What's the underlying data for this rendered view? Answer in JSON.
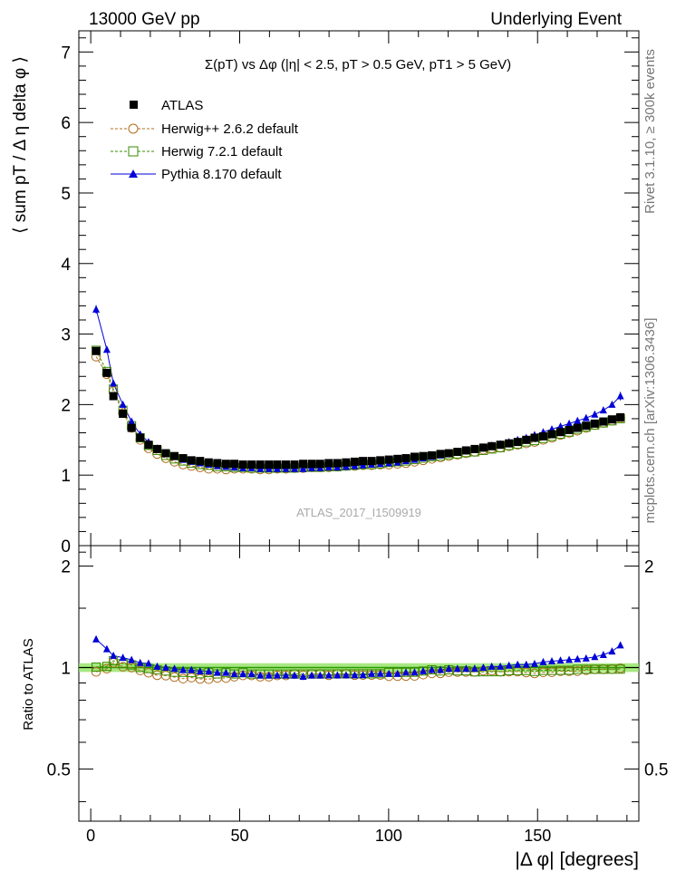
{
  "header": {
    "left": "13000 GeV pp",
    "right": "Underlying Event"
  },
  "side_labels": {
    "rivet": "Rivet 3.1.10, ≥ 300k events",
    "mcplots": "mcplots.cern.ch [arXiv:1306.3436]"
  },
  "chart_data": {
    "type": "scatter",
    "title": "Σ(pT) vs Δφ (|η| < 2.5, pT > 0.5 GeV, pT1 > 5 GeV)",
    "watermark": "ATLAS_2017_I1509919",
    "xlabel": "|Δ φ| [degrees]",
    "ylabel": "⟨ sum pT / Δ η delta φ ⟩",
    "ratio_ylabel": "Ratio to ATLAS",
    "xlim": [
      -4,
      184
    ],
    "ylim": [
      0,
      7.3
    ],
    "ratio_ylim": [
      0.35,
      2.3
    ],
    "x_ticks": [
      0,
      50,
      100,
      150
    ],
    "y_ticks": [
      1,
      2,
      3,
      4,
      5,
      6,
      7
    ],
    "y_tick_zero": "0",
    "ratio_ticks": [
      0.5,
      1,
      2
    ],
    "legend": [
      "ATLAS",
      "Herwig++ 2.6.2 default",
      "Herwig 7.2.1 default",
      "Pythia 8.170 default"
    ],
    "x": [
      1.8,
      5.4,
      7.6,
      10.8,
      13.7,
      16.6,
      19.4,
      22.3,
      25.2,
      28.1,
      31.0,
      33.8,
      36.7,
      39.6,
      42.5,
      45.4,
      48.2,
      51.1,
      54.0,
      56.9,
      59.8,
      62.6,
      65.5,
      68.4,
      71.3,
      74.2,
      77.0,
      79.9,
      82.8,
      85.7,
      88.6,
      91.4,
      94.3,
      97.2,
      100.1,
      103.0,
      105.8,
      108.7,
      111.6,
      114.5,
      117.4,
      120.2,
      123.1,
      126.0,
      128.9,
      131.8,
      134.6,
      137.5,
      140.4,
      143.3,
      146.2,
      149.0,
      151.9,
      154.8,
      157.7,
      160.6,
      163.4,
      166.3,
      169.2,
      172.1,
      175.0,
      177.8
    ],
    "series": [
      {
        "name": "ATLAS",
        "values": [
          2.76,
          2.45,
          2.12,
          1.87,
          1.67,
          1.53,
          1.43,
          1.37,
          1.31,
          1.27,
          1.24,
          1.21,
          1.2,
          1.18,
          1.17,
          1.16,
          1.16,
          1.15,
          1.15,
          1.15,
          1.15,
          1.15,
          1.15,
          1.15,
          1.16,
          1.16,
          1.16,
          1.17,
          1.17,
          1.18,
          1.19,
          1.2,
          1.2,
          1.21,
          1.22,
          1.23,
          1.24,
          1.26,
          1.27,
          1.28,
          1.3,
          1.31,
          1.33,
          1.35,
          1.37,
          1.39,
          1.41,
          1.43,
          1.45,
          1.47,
          1.5,
          1.53,
          1.55,
          1.58,
          1.61,
          1.64,
          1.67,
          1.7,
          1.73,
          1.76,
          1.79,
          1.82
        ]
      },
      {
        "name": "Herwig++ 2.6.2 default",
        "values": [
          2.68,
          2.43,
          2.19,
          1.88,
          1.67,
          1.5,
          1.38,
          1.3,
          1.24,
          1.19,
          1.15,
          1.13,
          1.11,
          1.09,
          1.09,
          1.08,
          1.09,
          1.09,
          1.09,
          1.08,
          1.08,
          1.09,
          1.09,
          1.1,
          1.1,
          1.11,
          1.11,
          1.11,
          1.12,
          1.13,
          1.13,
          1.14,
          1.14,
          1.15,
          1.15,
          1.16,
          1.17,
          1.19,
          1.21,
          1.23,
          1.25,
          1.27,
          1.29,
          1.31,
          1.33,
          1.36,
          1.38,
          1.39,
          1.41,
          1.43,
          1.45,
          1.47,
          1.5,
          1.53,
          1.57,
          1.6,
          1.63,
          1.67,
          1.71,
          1.74,
          1.77,
          1.81
        ]
      },
      {
        "name": "Herwig 7.2.1 default",
        "values": [
          2.77,
          2.47,
          2.22,
          1.92,
          1.7,
          1.53,
          1.42,
          1.35,
          1.28,
          1.23,
          1.2,
          1.17,
          1.15,
          1.14,
          1.12,
          1.12,
          1.11,
          1.11,
          1.1,
          1.1,
          1.1,
          1.1,
          1.1,
          1.1,
          1.11,
          1.11,
          1.11,
          1.12,
          1.12,
          1.13,
          1.14,
          1.15,
          1.15,
          1.16,
          1.18,
          1.19,
          1.2,
          1.22,
          1.24,
          1.26,
          1.27,
          1.29,
          1.3,
          1.32,
          1.33,
          1.35,
          1.37,
          1.39,
          1.42,
          1.44,
          1.47,
          1.49,
          1.52,
          1.55,
          1.58,
          1.61,
          1.65,
          1.68,
          1.71,
          1.74,
          1.77,
          1.8
        ]
      },
      {
        "name": "Pythia 8.170 default",
        "values": [
          3.35,
          2.78,
          2.3,
          2.0,
          1.76,
          1.58,
          1.47,
          1.38,
          1.31,
          1.26,
          1.22,
          1.19,
          1.17,
          1.15,
          1.13,
          1.12,
          1.11,
          1.1,
          1.1,
          1.09,
          1.09,
          1.09,
          1.09,
          1.09,
          1.09,
          1.1,
          1.1,
          1.11,
          1.11,
          1.12,
          1.13,
          1.14,
          1.15,
          1.16,
          1.17,
          1.18,
          1.2,
          1.22,
          1.24,
          1.26,
          1.28,
          1.3,
          1.32,
          1.34,
          1.36,
          1.39,
          1.42,
          1.44,
          1.47,
          1.5,
          1.53,
          1.57,
          1.61,
          1.65,
          1.69,
          1.73,
          1.77,
          1.81,
          1.86,
          1.92,
          2.0,
          2.12
        ]
      }
    ],
    "ratio_band": [
      0.97,
      1.03
    ]
  },
  "colors": {
    "atlas": "#000000",
    "herwigpp": "#b06c1f",
    "herwig7": "#3a8b00",
    "pythia": "#0000d8",
    "band": "#8ae05a"
  }
}
